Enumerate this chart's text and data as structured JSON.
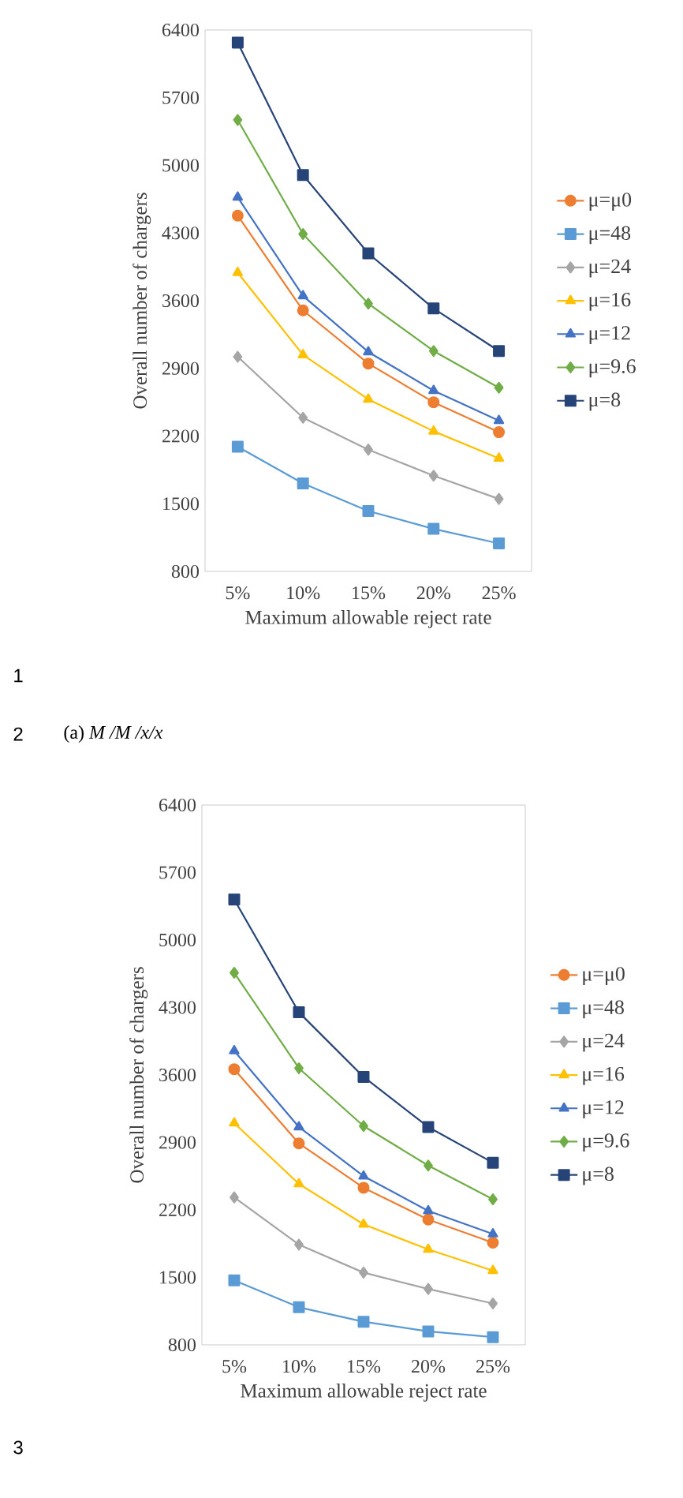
{
  "chart_data": [
    {
      "type": "line",
      "categories": [
        "5%",
        "10%",
        "15%",
        "20%",
        "25%"
      ],
      "xlabel": "Maximum allowable reject rate",
      "ylabel": "Overall number of chargers",
      "ylim": [
        800,
        6400
      ],
      "yticks": [
        800,
        1500,
        2200,
        2900,
        3600,
        4300,
        5000,
        5700,
        6400
      ],
      "legend": "right",
      "annotations": [
        "1",
        "2",
        "(a) *M /M /x/x*"
      ],
      "series": [
        {
          "name": "μ=μ0",
          "color": "#ed7d31",
          "marker": "circle",
          "values": [
            4480,
            3500,
            2950,
            2550,
            2240
          ]
        },
        {
          "name": "μ=48",
          "color": "#5b9bd5",
          "marker": "square",
          "values": [
            2090,
            1710,
            1425,
            1240,
            1090
          ]
        },
        {
          "name": "μ=24",
          "color": "#a5a5a5",
          "marker": "diamond",
          "values": [
            3020,
            2390,
            2060,
            1790,
            1550
          ]
        },
        {
          "name": "μ=16",
          "color": "#ffc000",
          "marker": "triangle",
          "values": [
            3890,
            3040,
            2580,
            2250,
            1970
          ]
        },
        {
          "name": "μ=12",
          "color": "#4472c4",
          "marker": "triangle",
          "values": [
            4670,
            3650,
            3070,
            2670,
            2360
          ]
        },
        {
          "name": "μ=9.6",
          "color": "#70ad47",
          "marker": "diamond",
          "values": [
            5470,
            4290,
            3570,
            3080,
            2700
          ]
        },
        {
          "name": "μ=8",
          "color": "#264478",
          "marker": "square",
          "values": [
            6270,
            4900,
            4090,
            3520,
            3080
          ]
        }
      ]
    },
    {
      "type": "line",
      "categories": [
        "5%",
        "10%",
        "15%",
        "20%",
        "25%"
      ],
      "xlabel": "Maximum allowable reject rate",
      "ylabel": "Overall number of chargers",
      "ylim": [
        800,
        6400
      ],
      "yticks": [
        800,
        1500,
        2200,
        2900,
        3600,
        4300,
        5000,
        5700,
        6400
      ],
      "legend": "right",
      "annotations": [
        "3"
      ],
      "series": [
        {
          "name": "μ=μ0",
          "color": "#ed7d31",
          "marker": "circle",
          "values": [
            3660,
            2890,
            2430,
            2100,
            1860
          ]
        },
        {
          "name": "μ=48",
          "color": "#5b9bd5",
          "marker": "square",
          "values": [
            1470,
            1190,
            1040,
            940,
            880
          ]
        },
        {
          "name": "μ=24",
          "color": "#a5a5a5",
          "marker": "diamond",
          "values": [
            2330,
            1840,
            1550,
            1380,
            1230
          ]
        },
        {
          "name": "μ=16",
          "color": "#ffc000",
          "marker": "triangle",
          "values": [
            3100,
            2470,
            2050,
            1790,
            1570
          ]
        },
        {
          "name": "μ=12",
          "color": "#4472c4",
          "marker": "triangle",
          "values": [
            3850,
            3060,
            2550,
            2190,
            1950
          ]
        },
        {
          "name": "μ=9.6",
          "color": "#70ad47",
          "marker": "diamond",
          "values": [
            4660,
            3670,
            3070,
            2660,
            2310
          ]
        },
        {
          "name": "μ=8",
          "color": "#264478",
          "marker": "square",
          "values": [
            5420,
            4250,
            3580,
            3060,
            2690
          ]
        }
      ]
    }
  ]
}
